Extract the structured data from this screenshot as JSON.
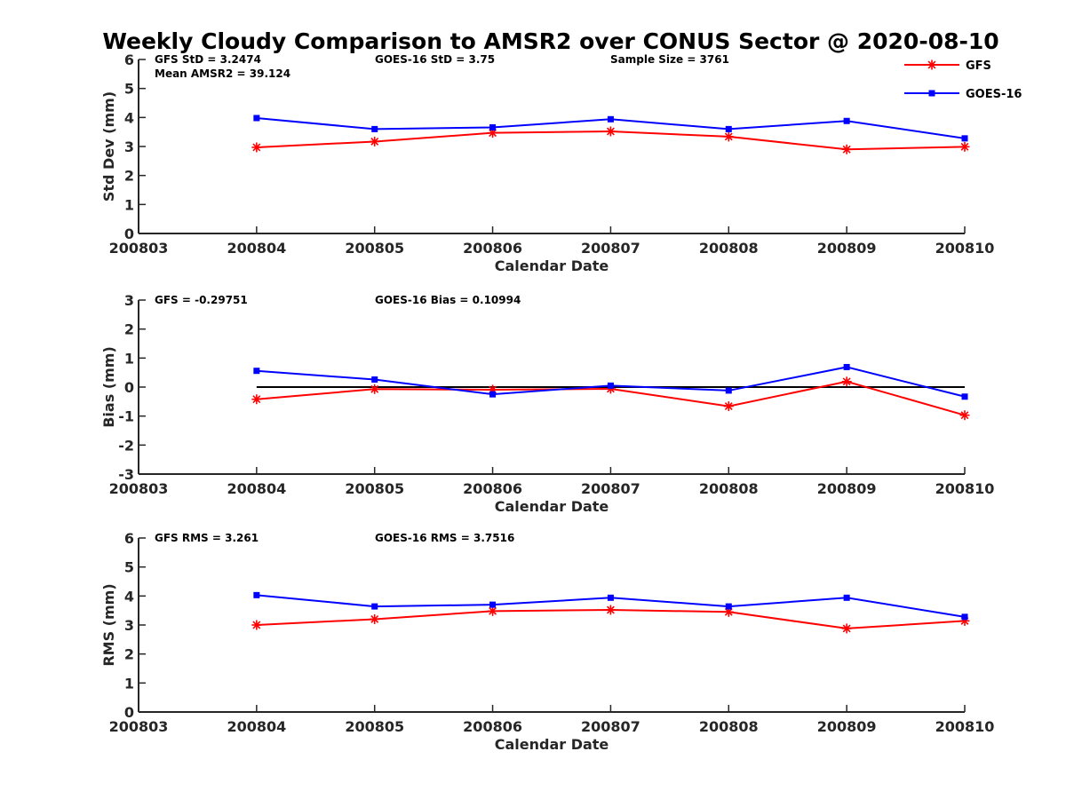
{
  "chart_data": {
    "title": "Weekly Cloudy Comparison to AMSR2 over CONUS Sector @ 2020-08-10",
    "legend": {
      "placement": "top-right",
      "entries": [
        {
          "name": "GFS",
          "color": "#ff0000",
          "marker": "asterisk"
        },
        {
          "name": "GOES-16",
          "color": "#0000ff",
          "marker": "square"
        }
      ]
    },
    "panels": [
      {
        "type": "line",
        "xlabel": "Calendar Date",
        "ylabel": "Std Dev (mm)",
        "xticks": [
          "200803",
          "200804",
          "200805",
          "200806",
          "200807",
          "200808",
          "200809",
          "200810"
        ],
        "ylim": [
          0,
          6
        ],
        "yticks": [
          "0",
          "1",
          "2",
          "3",
          "4",
          "5",
          "6"
        ],
        "annotations": [
          {
            "text": "GFS StD = 3.2474",
            "pos": "top-left"
          },
          {
            "text": "Mean AMSR2 = 39.124",
            "pos": "top-left-2"
          },
          {
            "text": "GOES-16 StD = 3.75",
            "pos": "top-center"
          },
          {
            "text": "Sample Size = 3761",
            "pos": "top-right"
          }
        ],
        "zero_line": false,
        "series": [
          {
            "name": "GFS",
            "color": "#ff0000",
            "marker": "asterisk",
            "x": [
              "200804",
              "200805",
              "200806",
              "200807",
              "200808",
              "200809",
              "200810"
            ],
            "values": [
              2.97,
              3.17,
              3.47,
              3.52,
              3.34,
              2.9,
              2.99
            ]
          },
          {
            "name": "GOES-16",
            "color": "#0000ff",
            "marker": "square",
            "x": [
              "200804",
              "200805",
              "200806",
              "200807",
              "200808",
              "200809",
              "200810"
            ],
            "values": [
              3.98,
              3.6,
              3.66,
              3.94,
              3.6,
              3.88,
              3.28
            ]
          }
        ]
      },
      {
        "type": "line",
        "xlabel": "Calendar Date",
        "ylabel": "Bias (mm)",
        "xticks": [
          "200803",
          "200804",
          "200805",
          "200806",
          "200807",
          "200808",
          "200809",
          "200810"
        ],
        "ylim": [
          -3,
          3
        ],
        "yticks": [
          "-3",
          "-2",
          "-1",
          "0",
          "1",
          "2",
          "3"
        ],
        "annotations": [
          {
            "text": "GFS = -0.29751",
            "pos": "top-left"
          },
          {
            "text": "GOES-16 Bias  = 0.10994",
            "pos": "top-center"
          }
        ],
        "zero_line": true,
        "series": [
          {
            "name": "GFS",
            "color": "#ff0000",
            "marker": "asterisk",
            "x": [
              "200804",
              "200805",
              "200806",
              "200807",
              "200808",
              "200809",
              "200810"
            ],
            "values": [
              -0.42,
              -0.07,
              -0.09,
              -0.06,
              -0.66,
              0.19,
              -0.97
            ]
          },
          {
            "name": "GOES-16",
            "color": "#0000ff",
            "marker": "square",
            "x": [
              "200804",
              "200805",
              "200806",
              "200807",
              "200808",
              "200809",
              "200810"
            ],
            "values": [
              0.56,
              0.26,
              -0.25,
              0.05,
              -0.12,
              0.69,
              -0.33
            ]
          }
        ]
      },
      {
        "type": "line",
        "xlabel": "Calendar Date",
        "ylabel": "RMS (mm)",
        "xticks": [
          "200803",
          "200804",
          "200805",
          "200806",
          "200807",
          "200808",
          "200809",
          "200810"
        ],
        "ylim": [
          0,
          6
        ],
        "yticks": [
          "0",
          "1",
          "2",
          "3",
          "4",
          "5",
          "6"
        ],
        "annotations": [
          {
            "text": "GFS RMS = 3.261",
            "pos": "top-left"
          },
          {
            "text": "GOES-16 RMS = 3.7516",
            "pos": "top-center"
          }
        ],
        "zero_line": false,
        "series": [
          {
            "name": "GFS",
            "color": "#ff0000",
            "marker": "asterisk",
            "x": [
              "200804",
              "200805",
              "200806",
              "200807",
              "200808",
              "200809",
              "200810"
            ],
            "values": [
              3.0,
              3.2,
              3.48,
              3.52,
              3.45,
              2.88,
              3.14
            ]
          },
          {
            "name": "GOES-16",
            "color": "#0000ff",
            "marker": "square",
            "x": [
              "200804",
              "200805",
              "200806",
              "200807",
              "200808",
              "200809",
              "200810"
            ],
            "values": [
              4.03,
              3.64,
              3.7,
              3.94,
              3.64,
              3.94,
              3.28
            ]
          }
        ]
      }
    ]
  }
}
